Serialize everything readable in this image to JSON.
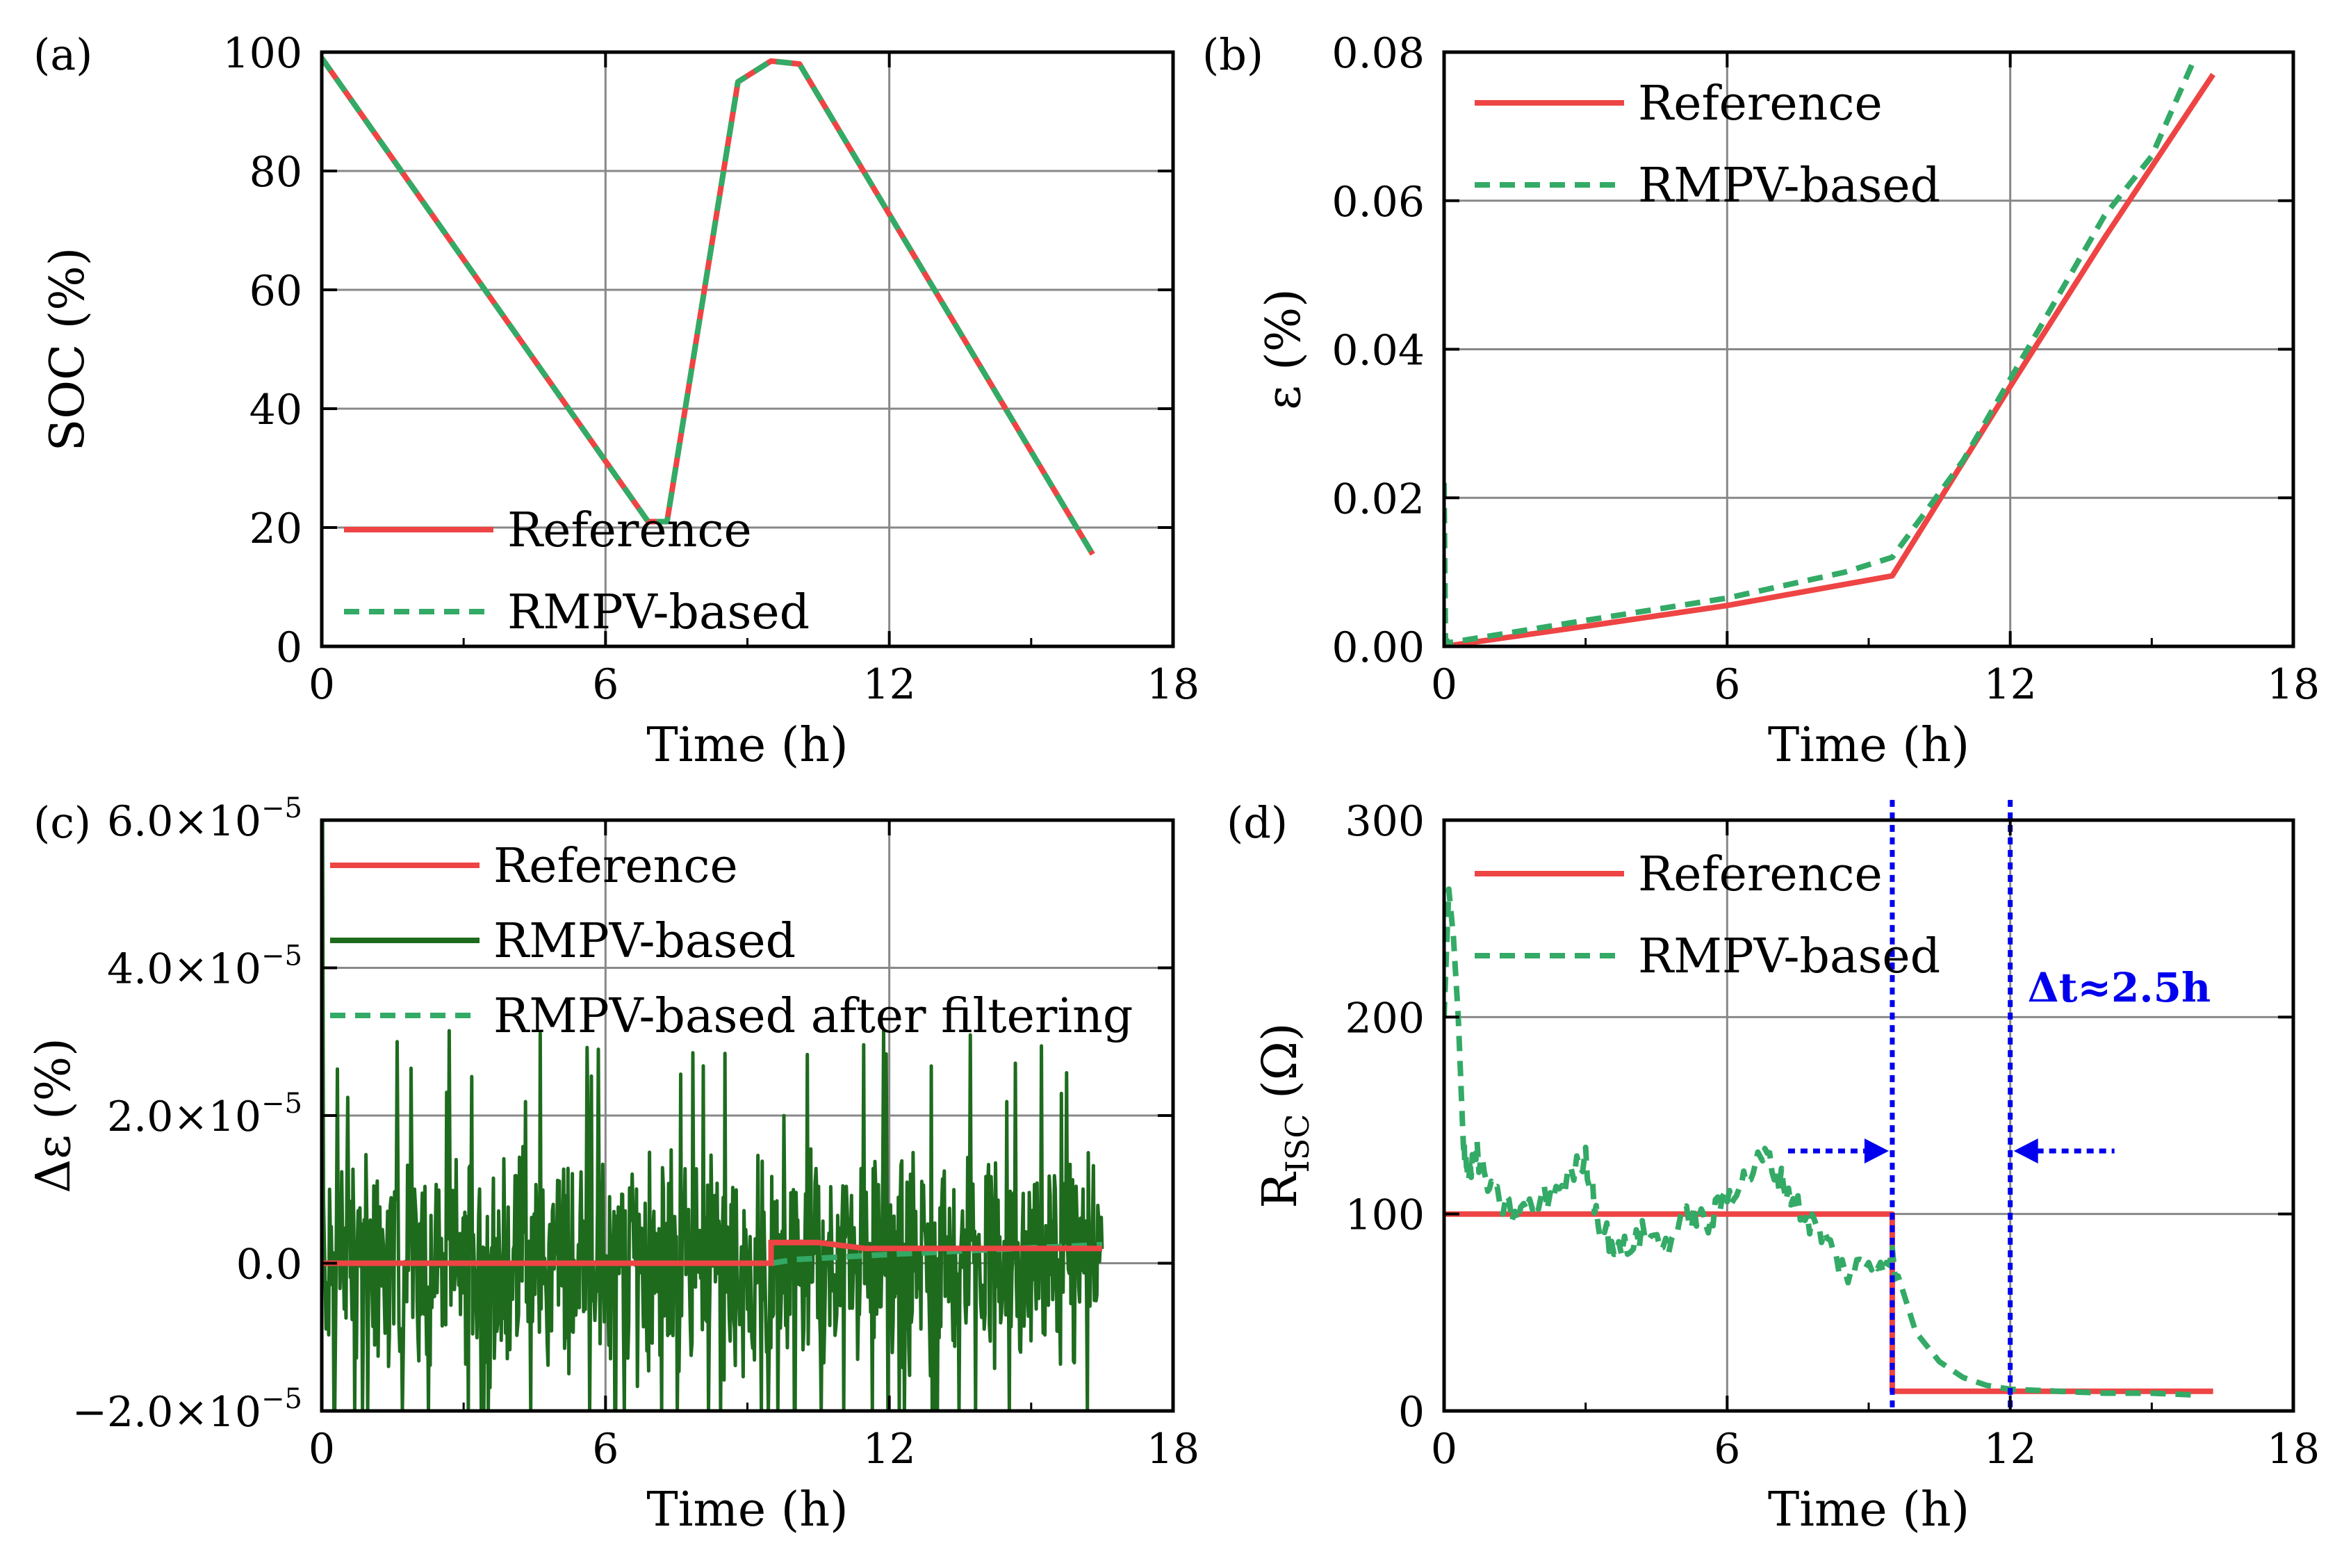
{
  "chart_data": [
    {
      "panel": "(a)",
      "type": "line",
      "xlabel": "Time (h)",
      "ylabel": "SOC (%)",
      "xlim": [
        0,
        18
      ],
      "ylim": [
        0,
        100
      ],
      "xticks": [
        0,
        6,
        12,
        18
      ],
      "yticks": [
        0,
        20,
        40,
        60,
        80,
        100
      ],
      "xtick_labels": [
        "0",
        "6",
        "12",
        "18"
      ],
      "ytick_labels": [
        "0",
        "20",
        "40",
        "60",
        "80",
        "100"
      ],
      "grid": true,
      "legend_placement": "bottom-left",
      "series": [
        {
          "name": "Reference",
          "style": "solid",
          "color": "#ee4444",
          "x": [
            0,
            6.9,
            7.3,
            8.8,
            9.5,
            10.1,
            16.3
          ],
          "y": [
            99,
            21,
            21,
            95,
            98.5,
            98,
            15.5
          ]
        },
        {
          "name": "RMPV-based",
          "style": "dashed",
          "color": "#33aa66",
          "x": [
            0,
            6.9,
            7.3,
            8.8,
            9.5,
            10.1,
            16.3
          ],
          "y": [
            99,
            21,
            21,
            95,
            98.5,
            98,
            15.5
          ]
        }
      ]
    },
    {
      "panel": "(b)",
      "type": "line",
      "xlabel": "Time (h)",
      "ylabel": "ε (%)",
      "xlim": [
        0,
        18
      ],
      "ylim": [
        0,
        0.08
      ],
      "xticks": [
        0,
        6,
        12,
        18
      ],
      "yticks": [
        0,
        0.02,
        0.04,
        0.06,
        0.08
      ],
      "xtick_labels": [
        "0",
        "6",
        "12",
        "18"
      ],
      "ytick_labels": [
        "0.00",
        "0.02",
        "0.04",
        "0.06",
        "0.08"
      ],
      "grid": true,
      "legend_placement": "top-left",
      "series": [
        {
          "name": "Reference",
          "style": "solid",
          "color": "#ee4444",
          "x": [
            0,
            3,
            6,
            9.5,
            12,
            14,
            16.3
          ],
          "y": [
            0,
            0.0027,
            0.0055,
            0.0095,
            0.035,
            0.055,
            0.077
          ]
        },
        {
          "name": "RMPV-based",
          "style": "dashed",
          "color": "#33aa66",
          "x": [
            0,
            0.03,
            0.1,
            3,
            6,
            8.5,
            9.5,
            11,
            12,
            13,
            14,
            15,
            15.9
          ],
          "y": [
            0.022,
            0.001,
            0.0005,
            0.0035,
            0.0065,
            0.01,
            0.012,
            0.025,
            0.036,
            0.047,
            0.058,
            0.066,
            0.079
          ]
        }
      ]
    },
    {
      "panel": "(c)",
      "type": "line",
      "xlabel": "Time (h)",
      "ylabel": "Δε (%)",
      "xlim": [
        0,
        18
      ],
      "ylim": [
        -2e-05,
        6e-05
      ],
      "xticks": [
        0,
        6,
        12,
        18
      ],
      "yticks": [
        -2e-05,
        0,
        2e-05,
        4e-05,
        6e-05
      ],
      "xtick_labels": [
        "0",
        "6",
        "12",
        "18"
      ],
      "ytick_labels": [
        {
          "mant": "−2.0×10",
          "exp": "−5"
        },
        {
          "mant": "0.0",
          "exp": ""
        },
        {
          "mant": "2.0×10",
          "exp": "−5"
        },
        {
          "mant": "4.0×10",
          "exp": "−5"
        },
        {
          "mant": "6.0×10",
          "exp": "−5"
        }
      ],
      "grid": true,
      "legend_placement": "top",
      "series": [
        {
          "name": "Reference",
          "style": "solid",
          "color": "#ee4444",
          "x": [
            0,
            9.5,
            9.5,
            10.5,
            11.5,
            16.5
          ],
          "y": [
            0,
            0,
            2.8e-06,
            2.8e-06,
            2e-06,
            2e-06
          ]
        },
        {
          "name": "RMPV-based",
          "style": "solid",
          "color": "#1e6b1e",
          "note_noise_range": [
            -2e-05,
            3.2e-05
          ],
          "x": [
            0,
            16.5
          ],
          "y": [
            0,
            0
          ]
        },
        {
          "name": "RMPV-based after filtering",
          "style": "dashed",
          "color": "#33aa66",
          "x": [
            0,
            9.5,
            10,
            12,
            14,
            16.5
          ],
          "y": [
            0,
            0,
            5e-07,
            1.2e-06,
            1.8e-06,
            2.5e-06
          ]
        }
      ]
    },
    {
      "panel": "(d)",
      "type": "line",
      "xlabel": "Time (h)",
      "ylabel_main": "R",
      "ylabel_sub": "ISC",
      "ylabel_unit": " (Ω)",
      "xlim": [
        0,
        18
      ],
      "ylim": [
        0,
        300
      ],
      "xticks": [
        0,
        6,
        12,
        18
      ],
      "yticks": [
        0,
        100,
        200,
        300
      ],
      "xtick_labels": [
        "0",
        "6",
        "12",
        "18"
      ],
      "ytick_labels": [
        "0",
        "100",
        "200",
        "300"
      ],
      "grid": true,
      "legend_placement": "top-left",
      "annotation": {
        "text": "Δt≈2.5h",
        "color": "#0000ee",
        "x1": 9.5,
        "x2": 12
      },
      "series": [
        {
          "name": "Reference",
          "style": "solid",
          "color": "#ee4444",
          "x": [
            0,
            9.5,
            9.5,
            16.3
          ],
          "y": [
            100,
            100,
            10,
            10
          ]
        },
        {
          "name": "RMPV-based",
          "style": "dashed",
          "color": "#33aa66",
          "x": [
            0,
            0.1,
            0.2,
            0.3,
            0.4,
            0.5,
            0.7,
            1,
            1.5,
            2,
            2.5,
            3,
            3.3,
            3.7,
            4.2,
            4.7,
            5.2,
            5.6,
            6,
            6.4,
            6.8,
            7.2,
            7.6,
            8,
            8.5,
            9,
            9.5,
            10,
            10.5,
            11,
            11.5,
            12,
            13,
            14,
            15,
            16
          ],
          "y": [
            200,
            265,
            240,
            200,
            140,
            120,
            130,
            110,
            100,
            105,
            115,
            128,
            95,
            80,
            90,
            85,
            100,
            95,
            110,
            118,
            130,
            115,
            100,
            90,
            70,
            75,
            78,
            40,
            25,
            17,
            13,
            11,
            10,
            9,
            9,
            8
          ]
        }
      ]
    }
  ]
}
